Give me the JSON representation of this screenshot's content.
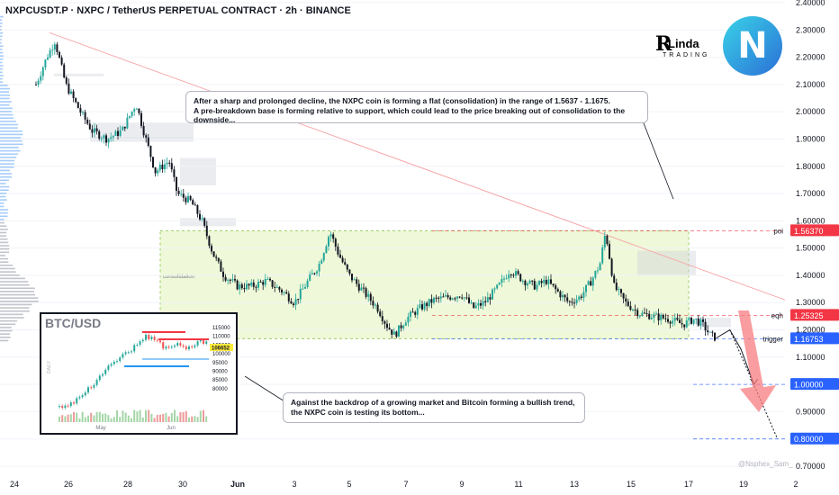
{
  "header": {
    "title": "NXPCUSDT.P · NXPC / TetherUS PERPETUAL CONTRACT · 2h · BINANCE"
  },
  "callouts": {
    "top": "After a sharp and prolonged decline, the NXPC coin is forming a flat (consolidation) in the range of 1.5637 - 1.1675.\nA pre-breakdown base is forming relative to support, which could lead to the price breaking out of consolidation to the downside...",
    "bottom": "Against the backdrop of a growing market and Bitcoin forming a bullish trend,\nthe NXPC coin is testing its bottom..."
  },
  "logos": {
    "left_word": "Linda",
    "left_initial": "R",
    "left_sub": "TRADING",
    "right_mark": "N"
  },
  "watermark": "@Nsphex_Sam_",
  "colors": {
    "up": "#26a69a",
    "down": "#131722",
    "red_badge": "#f23645",
    "blue_badge": "#2962ff",
    "consolidation_fill": "#e8f5c8",
    "arrow_red": "#f77c80"
  },
  "chart_data": {
    "type": "candlestick",
    "symbol": "NXPCUSDT.P",
    "timeframe": "2h",
    "y_axis": {
      "ticks": [
        "2.40000",
        "2.30000",
        "2.20000",
        "2.10000",
        "2.00000",
        "1.90000",
        "1.80000",
        "1.70000",
        "1.60000",
        "1.50000",
        "1.40000",
        "1.30000",
        "1.20000",
        "1.10000",
        "1.00000",
        "0.90000",
        "0.80000",
        "0.70000"
      ],
      "ylim": [
        0.66,
        2.42
      ]
    },
    "x_axis": {
      "ticks": [
        "24",
        "26",
        "28",
        "30",
        "Jun",
        "3",
        "5",
        "7",
        "9",
        "11",
        "13",
        "15",
        "17",
        "19",
        "2"
      ]
    },
    "levels": [
      {
        "name": "poi",
        "value_label": "1.56370",
        "value": 1.5637,
        "color": "#f23645"
      },
      {
        "name": "eqh",
        "value_label": "1.25325",
        "value": 1.25325,
        "color": "#f23645"
      },
      {
        "name": "trigger",
        "value_label": "1.16753",
        "value": 1.16753,
        "color": "#2962ff"
      },
      {
        "name": "",
        "value_label": "1.00000",
        "value": 1.0,
        "color": "#2962ff"
      },
      {
        "name": "",
        "value_label": "0.80000",
        "value": 0.8,
        "color": "#2962ff"
      }
    ],
    "zone": {
      "label": "consolidation",
      "top": 1.5637,
      "bottom": 1.1675
    },
    "price_path": [
      [
        "24.8",
        2.1
      ],
      [
        "25.2",
        2.2
      ],
      [
        "25.5",
        2.26
      ],
      [
        "25.9",
        2.1
      ],
      [
        "26.4",
        2.0
      ],
      [
        "26.8",
        1.93
      ],
      [
        "27.3",
        1.9
      ],
      [
        "27.8",
        1.93
      ],
      [
        "28.3",
        2.03
      ],
      [
        "28.6",
        1.92
      ],
      [
        "29.0",
        1.78
      ],
      [
        "29.5",
        1.82
      ],
      [
        "29.8",
        1.7
      ],
      [
        "30.3",
        1.67
      ],
      [
        "30.7",
        1.6
      ],
      [
        "31.1",
        1.48
      ],
      [
        "31.5",
        1.4
      ],
      [
        "32.0",
        1.36
      ],
      [
        "32.5",
        1.36
      ],
      [
        "33.0",
        1.38
      ],
      [
        "33.6",
        1.34
      ],
      [
        "34.0",
        1.3
      ],
      [
        "34.5",
        1.38
      ],
      [
        "34.9",
        1.44
      ],
      [
        "35.3",
        1.56
      ],
      [
        "35.6",
        1.48
      ],
      [
        "36.0",
        1.4
      ],
      [
        "36.5",
        1.34
      ],
      [
        "37.0",
        1.28
      ],
      [
        "37.3",
        1.22
      ],
      [
        "37.6",
        1.18
      ],
      [
        "38.0",
        1.24
      ],
      [
        "38.5",
        1.28
      ],
      [
        "39.0",
        1.31
      ],
      [
        "39.5",
        1.32
      ],
      [
        "40.0",
        1.33
      ],
      [
        "40.4",
        1.28
      ],
      [
        "40.8",
        1.3
      ],
      [
        "41.3",
        1.36
      ],
      [
        "41.7",
        1.42
      ],
      [
        "42.2",
        1.38
      ],
      [
        "42.6",
        1.36
      ],
      [
        "43.0",
        1.38
      ],
      [
        "43.4",
        1.34
      ],
      [
        "43.8",
        1.3
      ],
      [
        "44.2",
        1.32
      ],
      [
        "44.6",
        1.38
      ],
      [
        "44.9",
        1.44
      ],
      [
        "45.1",
        1.56
      ],
      [
        "45.4",
        1.36
      ],
      [
        "45.8",
        1.3
      ],
      [
        "46.3",
        1.26
      ],
      [
        "46.8",
        1.25
      ],
      [
        "47.3",
        1.24
      ],
      [
        "47.8",
        1.22
      ],
      [
        "48.2",
        1.24
      ],
      [
        "48.5",
        1.22
      ],
      [
        "48.8",
        1.18
      ],
      [
        "49.0",
        1.17
      ]
    ],
    "projection": [
      [
        "49.0",
        1.17
      ],
      [
        "49.5",
        1.2
      ],
      [
        "49.9",
        1.13
      ],
      [
        "50.4",
        1.0
      ]
    ],
    "projection_alt": [
      [
        "49.5",
        1.2
      ],
      [
        "51.3",
        0.8
      ]
    ]
  },
  "inset": {
    "title": "BTC/USD",
    "y_ticks": [
      "115000",
      "110000",
      "105000",
      "100000",
      "95000",
      "90000",
      "85000",
      "80000"
    ],
    "x_ticks": [
      "May",
      "Jun"
    ],
    "badge": "106652",
    "side_label": "DAILY"
  }
}
